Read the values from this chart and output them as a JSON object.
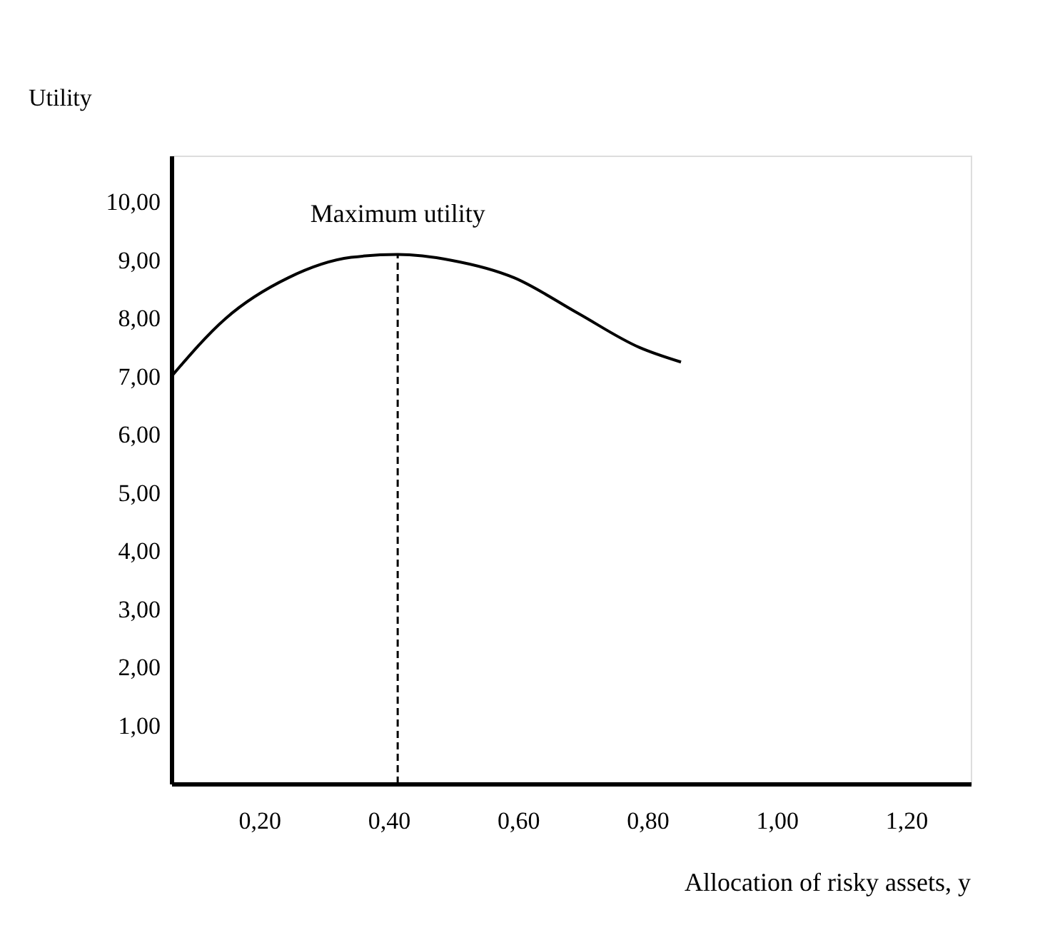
{
  "chart_data": {
    "type": "line",
    "xlabel": "Allocation of risky assets, y",
    "ylabel": "Utility",
    "x": [
      0.064,
      0.148,
      0.245,
      0.342,
      0.414,
      0.497,
      0.594,
      0.691,
      0.788,
      0.852
    ],
    "series": [
      {
        "color": "#000000",
        "values": [
          7.0,
          8.0,
          8.7,
          9.05,
          9.1,
          9.0,
          8.7,
          8.1,
          7.5,
          7.25
        ]
      }
    ],
    "xlim": [
      0.064,
      1.3
    ],
    "ylim": [
      0,
      10.8
    ],
    "xticks": [
      {
        "value": 0.2,
        "label": "0,20"
      },
      {
        "value": 0.4,
        "label": "0,40"
      },
      {
        "value": 0.6,
        "label": "0,60"
      },
      {
        "value": 0.8,
        "label": "0,80"
      },
      {
        "value": 1.0,
        "label": "1,00"
      },
      {
        "value": 1.2,
        "label": "1,20"
      }
    ],
    "yticks": [
      {
        "value": 1,
        "label": "1,00"
      },
      {
        "value": 2,
        "label": "2,00"
      },
      {
        "value": 3,
        "label": "3,00"
      },
      {
        "value": 4,
        "label": "4,00"
      },
      {
        "value": 5,
        "label": "5,00"
      },
      {
        "value": 6,
        "label": "6,00"
      },
      {
        "value": 7,
        "label": "7,00"
      },
      {
        "value": 8,
        "label": "8,00"
      },
      {
        "value": 9,
        "label": "9,00"
      },
      {
        "value": 10,
        "label": "10,00"
      }
    ],
    "ref_lines": [
      {
        "axis": "x",
        "value": 0.414,
        "line_style": "dashed",
        "color": "#000000"
      }
    ],
    "annotations": [
      {
        "text": "Maximum utility",
        "x": 0.414,
        "y": 9.1
      }
    ],
    "grid": false,
    "marker": "none",
    "line_style": "solid"
  }
}
